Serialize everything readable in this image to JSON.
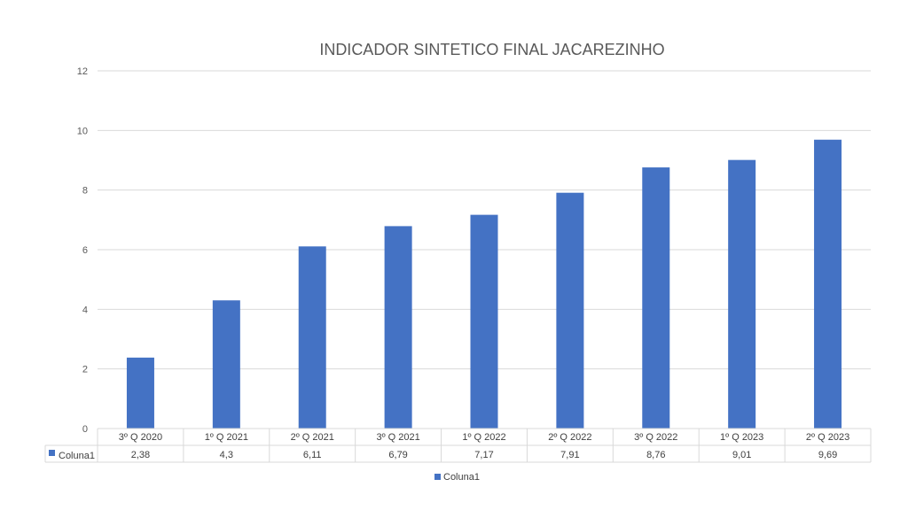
{
  "chart_data": {
    "type": "bar",
    "title": "INDICADOR SINTETICO FINAL JACAREZINHO",
    "categories": [
      "3º Q 2020",
      "1º Q 2021",
      "2º Q 2021",
      "3º Q 2021",
      "1º Q 2022",
      "2º Q 2022",
      "3º Q 2022",
      "1º Q 2023",
      "2º Q 2023"
    ],
    "series": [
      {
        "name": "Coluna1",
        "values": [
          2.38,
          4.3,
          6.11,
          6.79,
          7.17,
          7.91,
          8.76,
          9.01,
          9.69
        ],
        "labels": [
          "2,38",
          "4,3",
          "6,11",
          "6,79",
          "7,17",
          "7,91",
          "8,76",
          "9,01",
          "9,69"
        ],
        "color": "#4472C4"
      }
    ],
    "ylim": [
      0,
      12
    ],
    "yticks": [
      0,
      2,
      4,
      6,
      8,
      10,
      12
    ],
    "grid": true,
    "data_table": true,
    "legend": "bottom"
  },
  "colors": {
    "gridline": "#d9d9d9",
    "table_border": "#d9d9d9"
  }
}
